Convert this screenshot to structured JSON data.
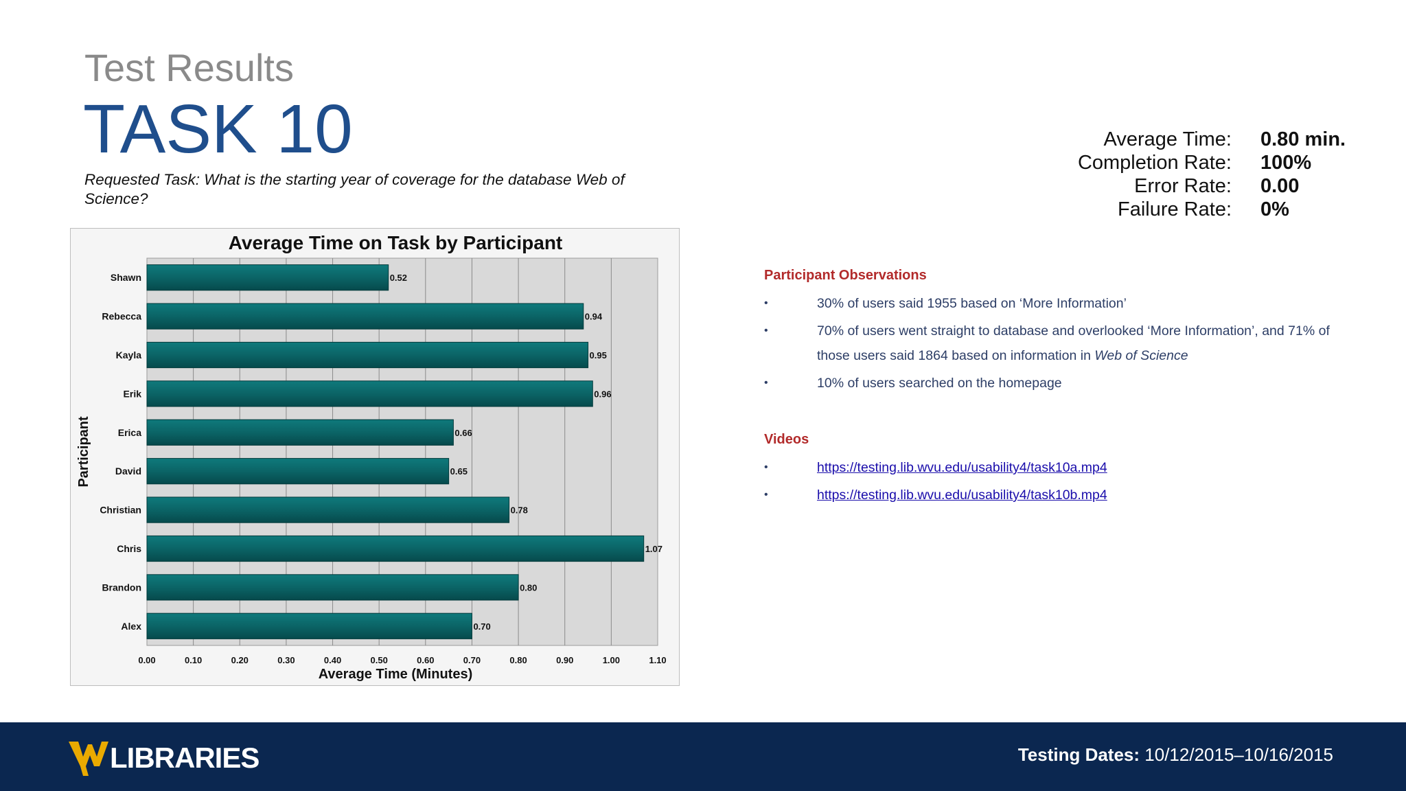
{
  "header": {
    "subtitle": "Test Results",
    "title": "TASK 10",
    "task": "Requested Task: What is the starting year of coverage for the database Web of Science?"
  },
  "metrics": [
    {
      "label": "Average Time:",
      "value": "0.80 min."
    },
    {
      "label": "Completion Rate:",
      "value": "100%"
    },
    {
      "label": "Error Rate:",
      "value": "0.00"
    },
    {
      "label": "Failure Rate:",
      "value": "0%"
    }
  ],
  "observations": {
    "heading": "Participant Observations",
    "items": [
      {
        "text": "30% of users said 1955 based on ‘More Information’"
      },
      {
        "text": "70% of users went straight to database and overlooked ‘More Information’, and 71% of those users said 1864 based on information in ",
        "em": "Web of Science"
      },
      {
        "text": "10% of users searched on the homepage"
      }
    ]
  },
  "videos": {
    "heading": "Videos",
    "links": [
      "https://testing.lib.wvu.edu/usability4/task10a.mp4",
      "https://testing.lib.wvu.edu/usability4/task10b.mp4"
    ]
  },
  "footer": {
    "logo_text": "LIBRARIES",
    "dates_label": "Testing Dates:",
    "dates_value": "10/12/2015–10/16/2015"
  },
  "chart_data": {
    "type": "bar",
    "orientation": "horizontal",
    "title": "Average Time on Task by Participant",
    "xlabel": "Average Time (Minutes)",
    "ylabel": "Participant",
    "categories": [
      "Shawn",
      "Rebecca",
      "Kayla",
      "Erik",
      "Erica",
      "David",
      "Christian",
      "Chris",
      "Brandon",
      "Alex"
    ],
    "values": [
      0.52,
      0.94,
      0.95,
      0.96,
      0.66,
      0.65,
      0.78,
      1.07,
      0.8,
      0.7
    ],
    "value_labels": [
      "0.52",
      "0.94",
      "0.95",
      "0.96",
      "0.66",
      "0.65",
      "0.78",
      "1.07",
      "0.80",
      "0.70"
    ],
    "xlim": [
      0,
      1.1
    ],
    "xticks": [
      "0.00",
      "0.10",
      "0.20",
      "0.30",
      "0.40",
      "0.50",
      "0.60",
      "0.70",
      "0.80",
      "0.90",
      "1.00",
      "1.10"
    ],
    "grid": true,
    "bar_color": "#0b6466",
    "plot_bg": "#d9d9d9"
  }
}
